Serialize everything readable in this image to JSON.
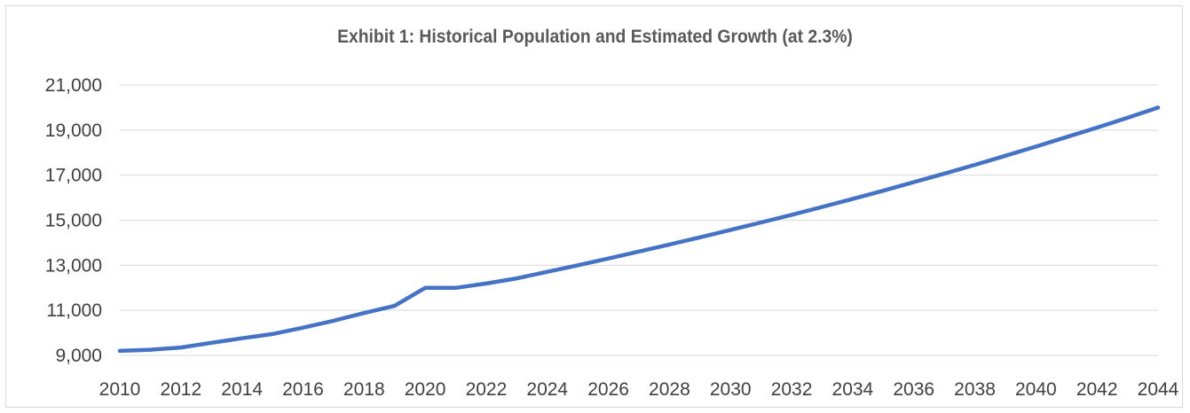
{
  "chart_data": {
    "type": "line",
    "title": "Exhibit 1: Historical Population and Estimated Growth (at 2.3%)",
    "xlabel": "",
    "ylabel": "",
    "ylim": [
      9000,
      21000
    ],
    "y_ticks": [
      "9,000",
      "11,000",
      "13,000",
      "15,000",
      "17,000",
      "19,000",
      "21,000"
    ],
    "x_tick_labels": [
      "2010",
      "2012",
      "2014",
      "2016",
      "2018",
      "2020",
      "2022",
      "2024",
      "2026",
      "2028",
      "2030",
      "2032",
      "2034",
      "2036",
      "2038",
      "2040",
      "2042",
      "2044"
    ],
    "grid": "horizontal",
    "legend": "none",
    "series": [
      {
        "color": "#4472c4",
        "x": [
          2010,
          2011,
          2012,
          2013,
          2014,
          2015,
          2016,
          2017,
          2018,
          2019,
          2020,
          2021,
          2022,
          2023,
          2024,
          2025,
          2026,
          2027,
          2028,
          2029,
          2030,
          2031,
          2032,
          2033,
          2034,
          2035,
          2036,
          2037,
          2038,
          2039,
          2040,
          2041,
          2042,
          2043,
          2044
        ],
        "values": [
          9200,
          9250,
          9350,
          9560,
          9760,
          9950,
          10230,
          10540,
          10880,
          11200,
          12000,
          12000,
          12190,
          12420,
          12710,
          13000,
          13300,
          13610,
          13920,
          14240,
          14570,
          14900,
          15240,
          15590,
          15950,
          16310,
          16690,
          17070,
          17460,
          17860,
          18270,
          18690,
          19110,
          19550,
          20000
        ]
      }
    ]
  }
}
